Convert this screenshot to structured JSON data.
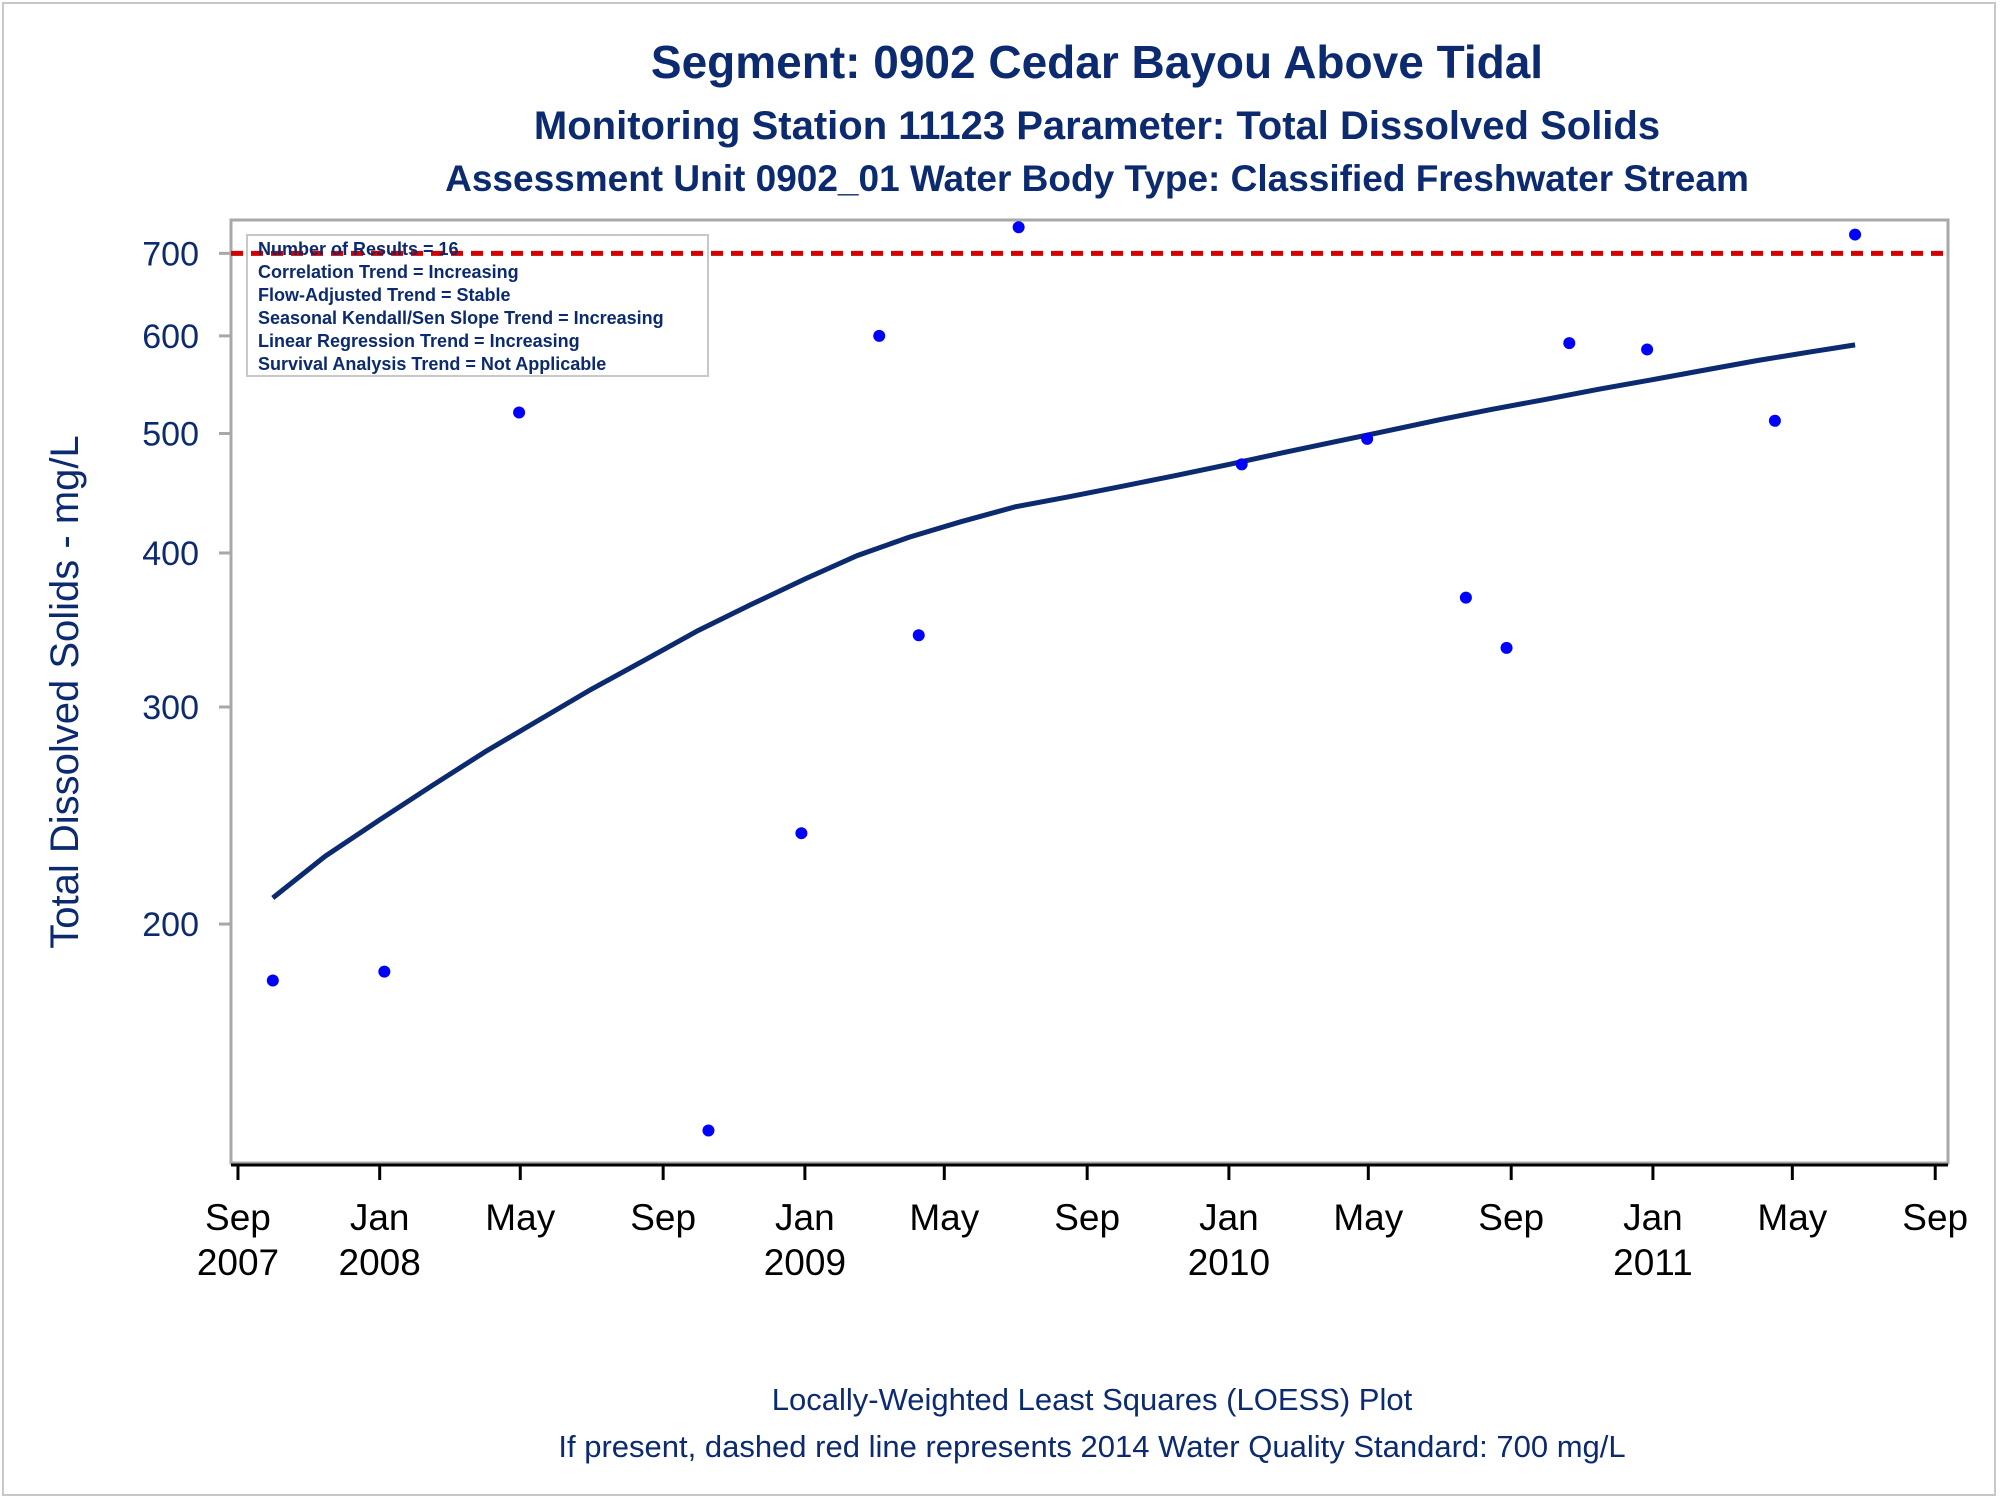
{
  "titles": {
    "line1": "Segment: 0902  Cedar Bayou Above Tidal",
    "line2": "Monitoring Station 11123 Parameter: Total Dissolved Solids",
    "line3": "Assessment Unit 0902_01   Water Body Type: Classified Freshwater Stream"
  },
  "stats_box": {
    "lines": [
      "Number of Results = 16",
      "Correlation Trend = Increasing",
      "Flow-Adjusted Trend = Stable",
      "Seasonal Kendall/Sen Slope Trend = Increasing",
      "Linear Regression Trend = Increasing",
      "Survival Analysis Trend = Not Applicable"
    ]
  },
  "footnotes": {
    "line1": "Locally-Weighted Least Squares (LOESS) Plot",
    "line2": "If present, dashed red line represents 2014 Water Quality Standard: 700   mg/L"
  },
  "chart_data": {
    "type": "scatter",
    "ylabel": "Total Dissolved Solids - mg/L",
    "y_scale": "log",
    "ylim": [
      128,
      745
    ],
    "xlim": [
      "2007-08-26",
      "2011-09-12"
    ],
    "y_ticks": [
      200,
      300,
      400,
      500,
      600,
      700
    ],
    "x_ticks": [
      {
        "date": "2007-09-01",
        "label": "Sep",
        "year": "2007"
      },
      {
        "date": "2008-01-01",
        "label": "Jan",
        "year": "2008"
      },
      {
        "date": "2008-05-01",
        "label": "May",
        "year": ""
      },
      {
        "date": "2008-09-01",
        "label": "Sep",
        "year": ""
      },
      {
        "date": "2009-01-01",
        "label": "Jan",
        "year": "2009"
      },
      {
        "date": "2009-05-01",
        "label": "May",
        "year": ""
      },
      {
        "date": "2009-09-01",
        "label": "Sep",
        "year": ""
      },
      {
        "date": "2010-01-01",
        "label": "Jan",
        "year": "2010"
      },
      {
        "date": "2010-05-01",
        "label": "May",
        "year": ""
      },
      {
        "date": "2010-09-01",
        "label": "Sep",
        "year": ""
      },
      {
        "date": "2011-01-01",
        "label": "Jan",
        "year": "2011"
      },
      {
        "date": "2011-05-01",
        "label": "May",
        "year": ""
      },
      {
        "date": "2011-09-01",
        "label": "Sep",
        "year": ""
      }
    ],
    "standard_line": {
      "value": 700,
      "color": "#d40000",
      "style": "dashed"
    },
    "series": [
      {
        "name": "",
        "type": "scatter",
        "color": "#0000ff",
        "points": [
          {
            "x": "2007-10-01",
            "y": 180
          },
          {
            "x": "2008-01-05",
            "y": 183
          },
          {
            "x": "2008-04-30",
            "y": 520
          },
          {
            "x": "2008-10-10",
            "y": 136
          },
          {
            "x": "2008-12-29",
            "y": 237
          },
          {
            "x": "2009-03-06",
            "y": 600
          },
          {
            "x": "2009-04-09",
            "y": 343
          },
          {
            "x": "2009-07-04",
            "y": 735
          },
          {
            "x": "2010-01-12",
            "y": 472
          },
          {
            "x": "2010-04-30",
            "y": 495
          },
          {
            "x": "2010-07-24",
            "y": 368
          },
          {
            "x": "2010-08-28",
            "y": 335
          },
          {
            "x": "2010-10-21",
            "y": 592
          },
          {
            "x": "2010-12-27",
            "y": 585
          },
          {
            "x": "2011-04-16",
            "y": 512
          },
          {
            "x": "2011-06-24",
            "y": 725
          }
        ]
      },
      {
        "name": "",
        "type": "line",
        "color": "#0b2a6f",
        "points": [
          {
            "x": "2007-10-01",
            "y": 210
          },
          {
            "x": "2007-11-15",
            "y": 227
          },
          {
            "x": "2008-01-01",
            "y": 243
          },
          {
            "x": "2008-02-15",
            "y": 259
          },
          {
            "x": "2008-04-01",
            "y": 276
          },
          {
            "x": "2008-05-15",
            "y": 292
          },
          {
            "x": "2008-07-01",
            "y": 310
          },
          {
            "x": "2008-08-15",
            "y": 327
          },
          {
            "x": "2008-10-01",
            "y": 346
          },
          {
            "x": "2008-11-15",
            "y": 363
          },
          {
            "x": "2009-01-01",
            "y": 381
          },
          {
            "x": "2009-02-15",
            "y": 398
          },
          {
            "x": "2009-04-01",
            "y": 412
          },
          {
            "x": "2009-05-15",
            "y": 424
          },
          {
            "x": "2009-07-01",
            "y": 436
          },
          {
            "x": "2009-08-15",
            "y": 444
          },
          {
            "x": "2009-10-01",
            "y": 453
          },
          {
            "x": "2009-11-15",
            "y": 462
          },
          {
            "x": "2010-01-01",
            "y": 472
          },
          {
            "x": "2010-02-15",
            "y": 482
          },
          {
            "x": "2010-04-01",
            "y": 492
          },
          {
            "x": "2010-05-15",
            "y": 502
          },
          {
            "x": "2010-07-01",
            "y": 513
          },
          {
            "x": "2010-08-15",
            "y": 523
          },
          {
            "x": "2010-10-01",
            "y": 533
          },
          {
            "x": "2010-11-15",
            "y": 543
          },
          {
            "x": "2011-01-01",
            "y": 553
          },
          {
            "x": "2011-02-15",
            "y": 563
          },
          {
            "x": "2011-04-01",
            "y": 573
          },
          {
            "x": "2011-05-15",
            "y": 582
          },
          {
            "x": "2011-06-24",
            "y": 590
          }
        ]
      }
    ]
  }
}
